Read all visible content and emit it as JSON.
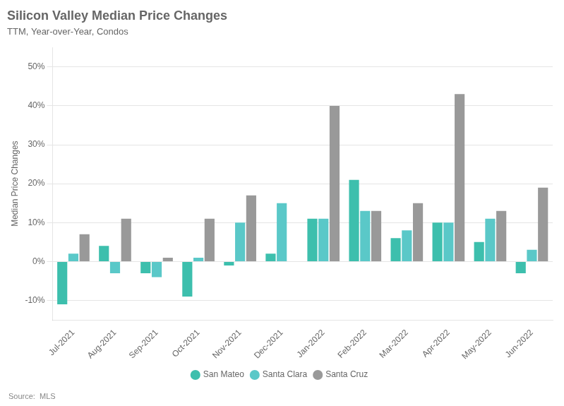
{
  "chart_data": {
    "type": "bar",
    "title": "Silicon Valley Median Price Changes",
    "subtitle": "TTM, Year-over-Year, Condos",
    "source": "Source:  MLS",
    "y_label": "Median Price Changes",
    "categories": [
      "Jul-2021",
      "Aug-2021",
      "Sep-2021",
      "Oct-2021",
      "Nov-2021",
      "Dec-2021",
      "Jan-2022",
      "Feb-2022",
      "Mar-2022",
      "Apr-2022",
      "May-2022",
      "Jun-2022"
    ],
    "series": [
      {
        "name": "San Mateo",
        "color": "#3dbfad",
        "values": [
          -11,
          4,
          -3,
          -9,
          -1,
          2,
          11,
          21,
          6,
          10,
          5,
          -3
        ]
      },
      {
        "name": "Santa Clara",
        "color": "#5ac8c8",
        "values": [
          2,
          -3,
          -4,
          1,
          10,
          15,
          11,
          13,
          8,
          10,
          11,
          3
        ]
      },
      {
        "name": "Santa Cruz",
        "color": "#999999",
        "values": [
          7,
          11,
          1,
          11,
          17,
          0,
          40,
          13,
          15,
          43,
          13,
          19
        ]
      }
    ],
    "ylim": [
      -15,
      55
    ],
    "yticks": [
      {
        "value": -10,
        "label": "-10%"
      },
      {
        "value": 0,
        "label": "0%"
      },
      {
        "value": 10,
        "label": "10%"
      },
      {
        "value": 20,
        "label": "20%"
      },
      {
        "value": 30,
        "label": "30%"
      },
      {
        "value": 40,
        "label": "40%"
      },
      {
        "value": 50,
        "label": "50%"
      }
    ],
    "grid": true,
    "legend": "bottom"
  }
}
